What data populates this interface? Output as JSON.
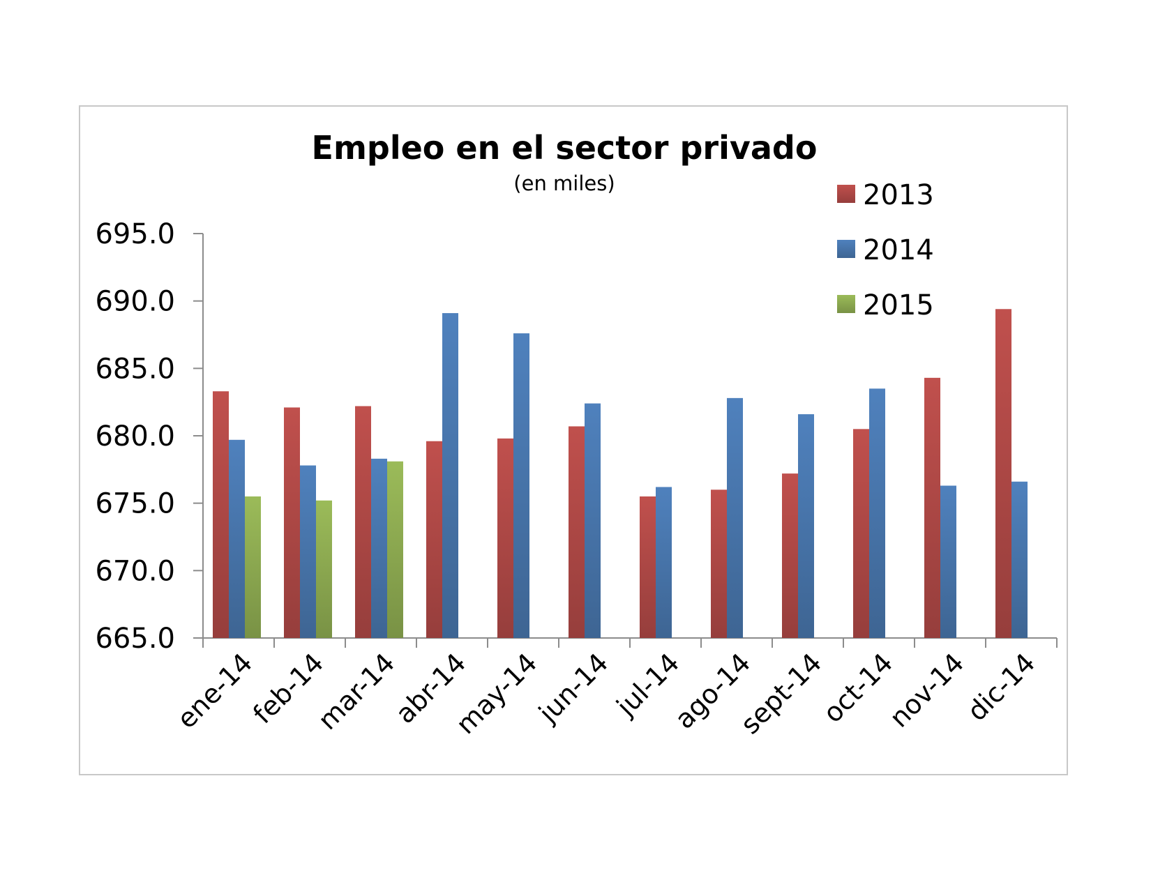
{
  "chart_data": {
    "type": "bar",
    "title": "Empleo en el sector privado",
    "subtitle": "(en miles)",
    "categories": [
      "ene-14",
      "feb-14",
      "mar-14",
      "abr-14",
      "may-14",
      "jun-14",
      "jul-14",
      "ago-14",
      "sept-14",
      "oct-14",
      "nov-14",
      "dic-14"
    ],
    "series": [
      {
        "name": "2013",
        "color": "#c0504d",
        "values": [
          683.3,
          682.1,
          682.2,
          679.6,
          679.8,
          680.7,
          675.5,
          676.0,
          677.2,
          680.5,
          684.3,
          689.4
        ]
      },
      {
        "name": "2014",
        "color": "#4f81bd",
        "values": [
          679.7,
          677.8,
          678.3,
          689.1,
          687.6,
          682.4,
          676.2,
          682.8,
          681.6,
          683.5,
          676.3,
          676.6
        ]
      },
      {
        "name": "2015",
        "color": "#9bbb59",
        "values": [
          675.5,
          675.2,
          678.1,
          null,
          null,
          null,
          null,
          null,
          null,
          null,
          null,
          null
        ]
      }
    ],
    "yticks": [
      "695.0",
      "690.0",
      "685.0",
      "680.0",
      "675.0",
      "670.0",
      "665.0"
    ],
    "ylim": [
      665,
      695
    ],
    "xlabel": "",
    "ylabel": "",
    "grid": false,
    "legend_position": "top-right"
  }
}
